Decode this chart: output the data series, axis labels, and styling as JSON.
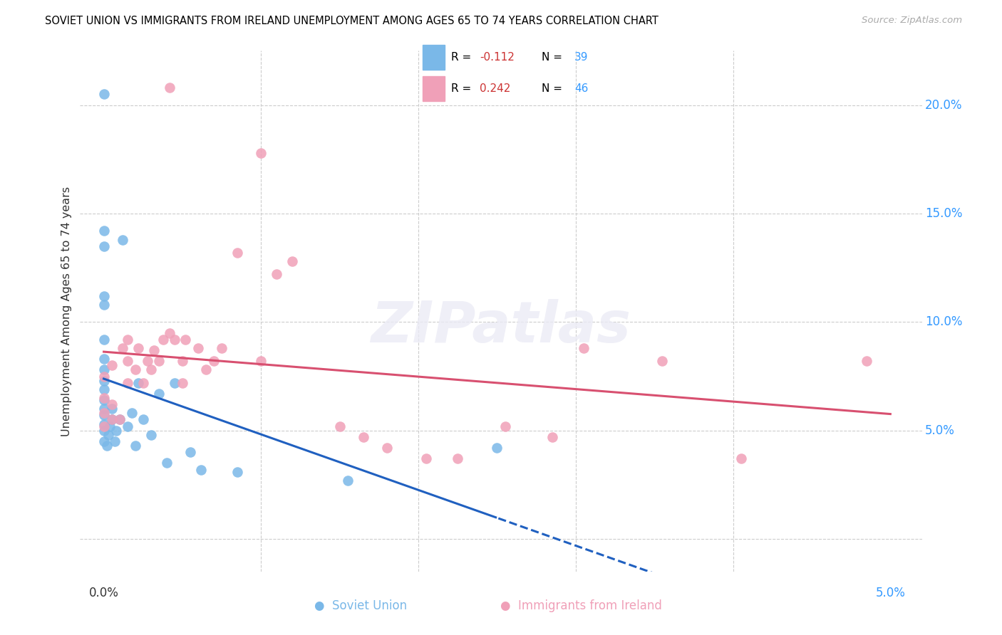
{
  "title": "SOVIET UNION VS IMMIGRANTS FROM IRELAND UNEMPLOYMENT AMONG AGES 65 TO 74 YEARS CORRELATION CHART",
  "source": "Source: ZipAtlas.com",
  "ylabel": "Unemployment Among Ages 65 to 74 years",
  "xlim": [
    -0.15,
    5.2
  ],
  "ylim": [
    -1.5,
    22.5
  ],
  "yticks": [
    0.0,
    5.0,
    10.0,
    15.0,
    20.0
  ],
  "ytick_labels": [
    "",
    "5.0%",
    "10.0%",
    "15.0%",
    "20.0%"
  ],
  "blue_color": "#7ab8e8",
  "pink_color": "#f0a0b8",
  "blue_line_color": "#2060c0",
  "pink_line_color": "#d85070",
  "watermark_text": "ZIPatlas",
  "soviet_x": [
    0.0,
    0.0,
    0.0,
    0.0,
    0.0,
    0.0,
    0.0,
    0.0,
    0.0,
    0.0,
    0.0,
    0.0,
    0.0,
    0.0,
    0.0,
    0.02,
    0.03,
    0.04,
    0.05,
    0.05,
    0.07,
    0.08,
    0.1,
    0.12,
    0.15,
    0.18,
    0.2,
    0.22,
    0.25,
    0.3,
    0.35,
    0.4,
    0.45,
    0.55,
    0.62,
    0.85,
    1.55,
    2.5,
    0.0
  ],
  "soviet_y": [
    4.5,
    5.0,
    5.3,
    5.7,
    6.0,
    6.4,
    6.9,
    7.3,
    7.8,
    8.3,
    9.2,
    10.8,
    11.2,
    13.5,
    14.2,
    4.3,
    4.8,
    5.2,
    5.5,
    6.0,
    4.5,
    5.0,
    5.5,
    13.8,
    5.2,
    5.8,
    4.3,
    7.2,
    5.5,
    4.8,
    6.7,
    3.5,
    7.2,
    4.0,
    3.2,
    3.1,
    2.7,
    4.2,
    20.5
  ],
  "ireland_x": [
    0.0,
    0.0,
    0.0,
    0.0,
    0.05,
    0.05,
    0.05,
    0.1,
    0.12,
    0.15,
    0.15,
    0.15,
    0.2,
    0.22,
    0.25,
    0.28,
    0.3,
    0.32,
    0.35,
    0.38,
    0.42,
    0.45,
    0.5,
    0.5,
    0.52,
    0.6,
    0.65,
    0.7,
    0.75,
    0.85,
    1.0,
    1.1,
    1.2,
    1.5,
    1.65,
    1.8,
    2.05,
    2.25,
    2.55,
    2.85,
    3.05,
    3.55,
    4.05,
    4.85,
    0.42,
    1.0
  ],
  "ireland_y": [
    5.2,
    5.8,
    6.5,
    7.5,
    5.5,
    6.2,
    8.0,
    5.5,
    8.8,
    7.2,
    8.2,
    9.2,
    7.8,
    8.8,
    7.2,
    8.2,
    7.8,
    8.7,
    8.2,
    9.2,
    9.5,
    9.2,
    7.2,
    8.2,
    9.2,
    8.8,
    7.8,
    8.2,
    8.8,
    13.2,
    8.2,
    12.2,
    12.8,
    5.2,
    4.7,
    4.2,
    3.7,
    3.7,
    5.2,
    4.7,
    8.8,
    8.2,
    3.7,
    8.2,
    20.8,
    17.8
  ]
}
